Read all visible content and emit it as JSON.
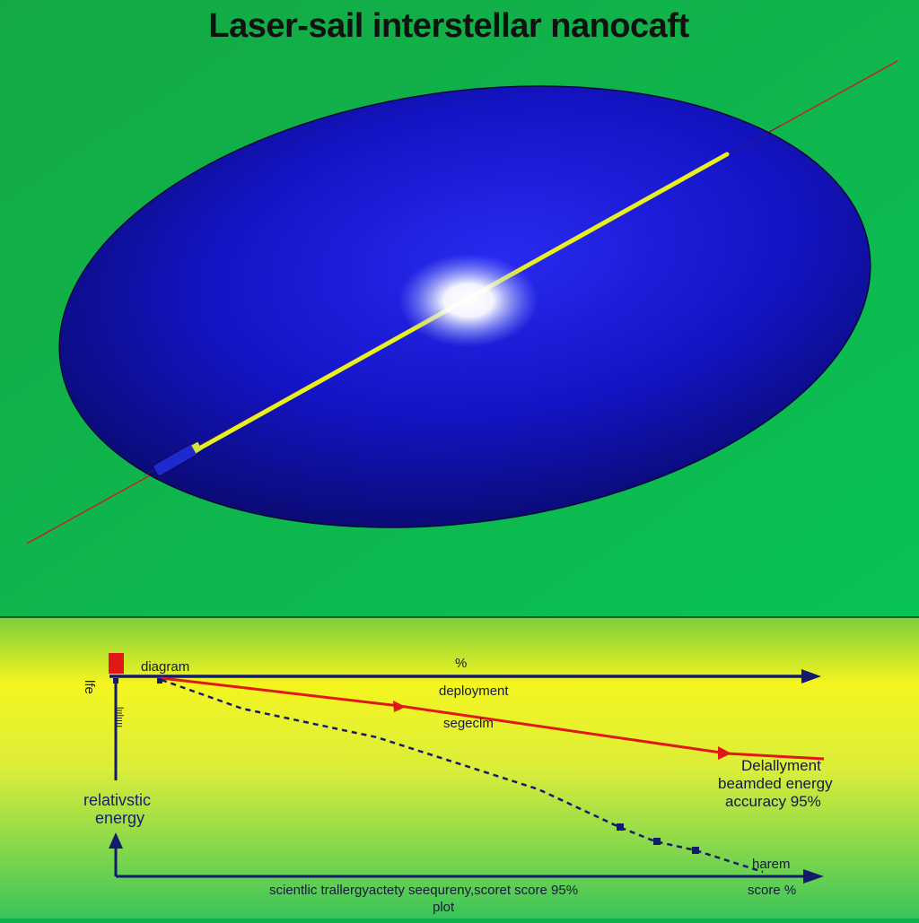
{
  "title": "Laser-sail interstellar nanocaft",
  "lower_panel": {
    "top_axis_label": "diagram",
    "top_axis_percent": "%",
    "red_line_label_1": "deployment",
    "red_line_label_2": "segeclm",
    "red_line_end_lines": [
      "Delallyment",
      "beamded energy",
      "accuracy 95%"
    ],
    "y_axis_small_label": "lfe",
    "y_axis_vertical_text": "lıılıııı",
    "y_axis_title_lines": [
      "relativstic",
      "energy"
    ],
    "curve_end_label": "harem",
    "x_axis_caption_line1": "scientlic trallergyactety seequreny,scoret  score 95%",
    "x_axis_caption_line2": "plot",
    "x_axis_end_label": "score %"
  },
  "colors": {
    "background_green": "#0db34a",
    "sail_blue": "#1515c8",
    "beam_yellow": "#e8f020",
    "laser_red": "#d21a1a",
    "axis_navy": "#141a6e"
  }
}
